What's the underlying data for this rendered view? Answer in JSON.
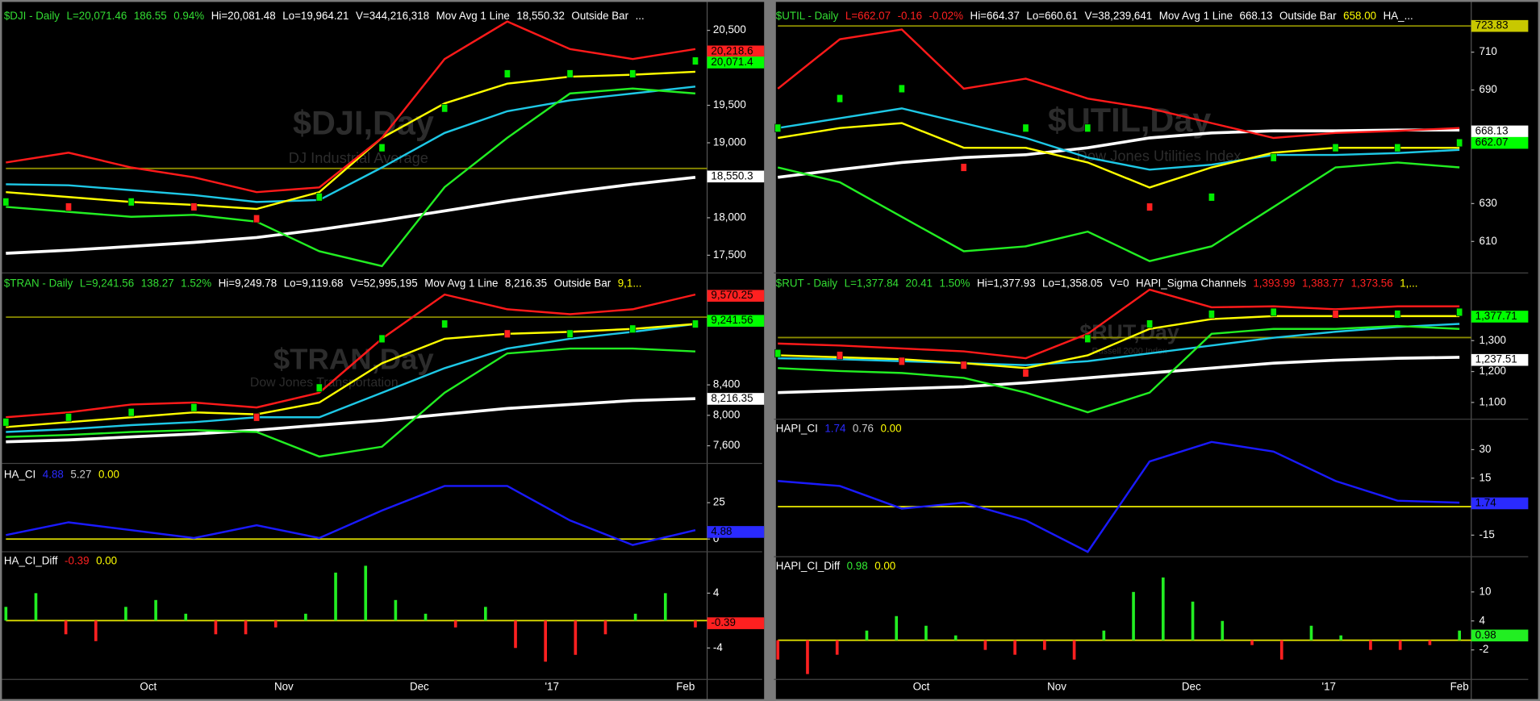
{
  "chart_data": [
    {
      "type": "line",
      "header": [
        {
          "text": "$DJI - Daily",
          "color": "#33dd33"
        },
        {
          "text": "L=20,071.46",
          "color": "#33dd33"
        },
        {
          "text": "186.55",
          "color": "#33dd33"
        },
        {
          "text": "0.94%",
          "color": "#33dd33"
        },
        {
          "text": "Hi=20,081.48",
          "color": "#ffffff"
        },
        {
          "text": "Lo=19,964.21",
          "color": "#ffffff"
        },
        {
          "text": "V=344,216,318",
          "color": "#ffffff"
        },
        {
          "text": "Mov Avg 1 Line",
          "color": "#ffffff"
        },
        {
          "text": "18,550.32",
          "color": "#ffffff"
        },
        {
          "text": "Outside Bar",
          "color": "#ffffff"
        },
        {
          "text": "...",
          "color": "#ffffff"
        }
      ],
      "watermark": [
        "$DJI,Day",
        "DJ Industrial Average"
      ],
      "ylim": [
        17290,
        20800
      ],
      "yticks": [
        {
          "value": 20500,
          "label": "20,500"
        },
        {
          "value": 19500,
          "label": "19,500"
        },
        {
          "value": 19000,
          "label": "19,000"
        },
        {
          "value": 18000,
          "label": "18,000"
        },
        {
          "value": 17500,
          "label": "17,500"
        }
      ],
      "hlines": [
        {
          "value": 18658,
          "color": "#8b8b00"
        }
      ],
      "series": [
        {
          "color": "#ffffff",
          "width": 3,
          "values": [
            17526,
            17566,
            17618,
            17671,
            17737,
            17842,
            17961,
            18092,
            18224,
            18342,
            18447,
            18539
          ]
        },
        {
          "color": "#1ec8e6",
          "width": 2,
          "values": [
            18447,
            18434,
            18368,
            18303,
            18211,
            18237,
            18671,
            19132,
            19421,
            19566,
            19658,
            19750
          ]
        },
        {
          "color": "#ffff00",
          "width": 2,
          "values": [
            18342,
            18276,
            18211,
            18171,
            18118,
            18342,
            19066,
            19526,
            19789,
            19882,
            19908,
            19947
          ]
        },
        {
          "color": "#ff1a1a",
          "width": 2,
          "values": [
            18737,
            18868,
            18671,
            18539,
            18342,
            18405,
            19066,
            20118,
            20618,
            20250,
            20118,
            20250
          ]
        },
        {
          "color": "#22ee22",
          "width": 2,
          "values": [
            18145,
            18079,
            18013,
            18039,
            17947,
            17553,
            17355,
            18408,
            19066,
            19658,
            19724,
            19658
          ]
        },
        {
          "color": "#00ee00",
          "style": "candle",
          "values": [
            18211,
            18145,
            18211,
            18145,
            17987,
            18276,
            18934,
            19461,
            19921,
            19921,
            19921,
            20092
          ]
        }
      ],
      "flags": [
        {
          "value": 20218.6,
          "label": "20,218.6",
          "color": "#ff2020"
        },
        {
          "value": 20071.4,
          "label": "20,071.4",
          "color": "#00ff00"
        },
        {
          "value": 18550.3,
          "label": "18,550.3",
          "color": "#ffffff"
        }
      ]
    },
    {
      "type": "line",
      "header": [
        {
          "text": "$TRAN - Daily",
          "color": "#33dd33"
        },
        {
          "text": "L=9,241.56",
          "color": "#33dd33"
        },
        {
          "text": "138.27",
          "color": "#33dd33"
        },
        {
          "text": "1.52%",
          "color": "#33dd33"
        },
        {
          "text": "Hi=9,249.78",
          "color": "#ffffff"
        },
        {
          "text": "Lo=9,119.68",
          "color": "#ffffff"
        },
        {
          "text": "V=52,995,195",
          "color": "#ffffff"
        },
        {
          "text": "Mov Avg 1 Line",
          "color": "#ffffff"
        },
        {
          "text": "8,216.35",
          "color": "#ffffff"
        },
        {
          "text": "Outside Bar",
          "color": "#ffffff"
        },
        {
          "text": "9,1...",
          "color": "#ffff00"
        }
      ],
      "watermark": [
        "$TRAN,Day",
        "Dow Jones Transportation"
      ],
      "ylim": [
        7394,
        9845
      ],
      "yticks": [
        {
          "value": 8400,
          "label": "8,400"
        },
        {
          "value": 8000,
          "label": "8,000"
        },
        {
          "value": 7600,
          "label": "7,600"
        }
      ],
      "hlines": [
        {
          "value": 9290,
          "color": "#8b8b00"
        }
      ],
      "series": [
        {
          "color": "#ffffff",
          "width": 3,
          "values": [
            7652,
            7677,
            7716,
            7755,
            7806,
            7871,
            7935,
            8013,
            8090,
            8142,
            8194,
            8219
          ]
        },
        {
          "color": "#1ec8e6",
          "width": 2,
          "values": [
            7781,
            7819,
            7871,
            7910,
            7974,
            7974,
            8297,
            8619,
            8877,
            9006,
            9097,
            9200
          ]
        },
        {
          "color": "#ffff00",
          "width": 2,
          "values": [
            7845,
            7910,
            7974,
            8039,
            8013,
            8168,
            8684,
            9006,
            9071,
            9097,
            9135,
            9200
          ]
        },
        {
          "color": "#ff1a1a",
          "width": 2,
          "values": [
            7974,
            8039,
            8142,
            8168,
            8103,
            8297,
            9006,
            9587,
            9394,
            9329,
            9394,
            9587
          ]
        },
        {
          "color": "#22ee22",
          "width": 2,
          "values": [
            7716,
            7742,
            7781,
            7806,
            7781,
            7458,
            7587,
            8297,
            8813,
            8877,
            8877,
            8839
          ]
        },
        {
          "color": "#00ee00",
          "style": "candle",
          "values": [
            7910,
            7974,
            8039,
            8103,
            7974,
            8361,
            9006,
            9200,
            9071,
            9071,
            9135,
            9200
          ]
        }
      ],
      "flags": [
        {
          "value": 9570.25,
          "label": "9,570.25",
          "color": "#ff2020"
        },
        {
          "value": 9241.56,
          "label": "9,241.56",
          "color": "#00ff00"
        },
        {
          "value": 8216.35,
          "label": "8,216.35",
          "color": "#ffffff"
        }
      ]
    },
    {
      "type": "line",
      "header": [
        {
          "text": "HA_CI",
          "color": "#ffffff"
        },
        {
          "text": "4.88",
          "color": "#2a2aff"
        },
        {
          "text": "5.27",
          "color": "#cccccc"
        },
        {
          "text": "0.00",
          "color": "#ffff00"
        }
      ],
      "ylim": [
        -7.4,
        50
      ],
      "yticks": [
        25,
        0
      ],
      "hlines": [
        {
          "value": 0,
          "color": "#dddd00"
        }
      ],
      "series": [
        {
          "color": "#1a1aff",
          "width": 2,
          "values": [
            2.7,
            11.5,
            6.1,
            0.7,
            9.5,
            0.7,
            19.6,
            36.5,
            36.5,
            12.8,
            -4.1,
            6.1
          ]
        }
      ],
      "flags": [
        {
          "value": 4.88,
          "label": "4.88",
          "color": "#2a2aff"
        }
      ]
    },
    {
      "type": "bar",
      "header": [
        {
          "text": "HA_CI_Diff",
          "color": "#ffffff"
        },
        {
          "text": "-0.39",
          "color": "#ff2020"
        },
        {
          "text": "0.00",
          "color": "#ffff00"
        }
      ],
      "ylim": [
        -8.3,
        9.9
      ],
      "yticks": [
        4,
        -4
      ],
      "hlines": [
        {
          "value": 0,
          "color": "#dddd00"
        }
      ],
      "values": [
        2,
        4,
        -2,
        -3,
        2,
        3,
        1,
        -2,
        -2,
        -1,
        1,
        7,
        8,
        3,
        1,
        -1,
        2,
        -4,
        -6,
        -5,
        -2,
        1,
        4,
        -1
      ],
      "up_color": "#22ee22",
      "down_color": "#ff2020",
      "flags": [
        {
          "value": -0.39,
          "label": "-0.39",
          "color": "#ff2020"
        }
      ],
      "x_labels": [
        "Oct",
        "Nov",
        "Dec",
        "'17",
        "Feb"
      ]
    },
    {
      "type": "line",
      "header": [
        {
          "text": "$UTIL - Daily",
          "color": "#33dd33"
        },
        {
          "text": "L=662.07",
          "color": "#ff2020"
        },
        {
          "text": "-0.16",
          "color": "#ff2020"
        },
        {
          "text": "-0.02%",
          "color": "#ff2020"
        },
        {
          "text": "Hi=664.37",
          "color": "#ffffff"
        },
        {
          "text": "Lo=660.61",
          "color": "#ffffff"
        },
        {
          "text": "V=38,239,641",
          "color": "#ffffff"
        },
        {
          "text": "Mov Avg 1 Line",
          "color": "#ffffff"
        },
        {
          "text": "668.13",
          "color": "#ffffff"
        },
        {
          "text": "Outside Bar",
          "color": "#ffffff"
        },
        {
          "text": "658.00",
          "color": "#ffff00"
        },
        {
          "text": "HA_...",
          "color": "#ffffff"
        }
      ],
      "watermark": [
        "$UTIL,Day",
        "Dow Jones Utilities Index"
      ],
      "ylim": [
        594.4,
        733.4
      ],
      "yticks": [
        710,
        690,
        630,
        610
      ],
      "hlines": [
        {
          "value": 723.83,
          "color": "#8b8b00"
        }
      ],
      "series": [
        {
          "color": "#ffffff",
          "width": 3,
          "values": [
            643.9,
            648.0,
            651.7,
            654.3,
            655.8,
            659.5,
            664.7,
            667.3,
            668.4,
            668.4,
            668.9,
            668.9
          ]
        },
        {
          "color": "#1ec8e6",
          "width": 2,
          "values": [
            669.9,
            675.1,
            680.3,
            672.5,
            664.7,
            654.3,
            647.9,
            650.5,
            655.7,
            655.7,
            656.7,
            658.4
          ]
        },
        {
          "color": "#ffff00",
          "width": 2,
          "values": [
            664.7,
            669.9,
            672.5,
            659.5,
            659.5,
            651.7,
            638.5,
            649.1,
            656.9,
            659.5,
            659.5,
            659.5
          ]
        },
        {
          "color": "#ff1a1a",
          "width": 2,
          "values": [
            690.7,
            716.8,
            722.0,
            690.7,
            696.0,
            685.5,
            680.3,
            672.5,
            664.7,
            667.3,
            668.4,
            669.9
          ]
        },
        {
          "color": "#22ee22",
          "width": 2,
          "values": [
            649.1,
            641.3,
            623.0,
            604.8,
            607.4,
            615.2,
            599.6,
            607.4,
            628.2,
            649.1,
            651.7,
            649.1
          ]
        },
        {
          "color": "#00ee00",
          "style": "candle",
          "values": [
            669.9,
            685.5,
            690.7,
            649.1,
            669.9,
            669.9,
            628.2,
            633.4,
            654.3,
            659.5,
            659.5,
            662.1
          ]
        }
      ],
      "flags": [
        {
          "value": 723.83,
          "label": "723.83",
          "color": "#c8c800"
        },
        {
          "value": 668.13,
          "label": "668.13",
          "color": "#ffffff"
        },
        {
          "value": 662.07,
          "label": "662.07",
          "color": "#00ff00"
        }
      ]
    },
    {
      "type": "line",
      "header": [
        {
          "text": "$RUT - Daily",
          "color": "#33dd33"
        },
        {
          "text": "L=1,377.84",
          "color": "#33dd33"
        },
        {
          "text": "20.41",
          "color": "#33dd33"
        },
        {
          "text": "1.50%",
          "color": "#33dd33"
        },
        {
          "text": "Hi=1,377.93",
          "color": "#ffffff"
        },
        {
          "text": "Lo=1,358.05",
          "color": "#ffffff"
        },
        {
          "text": "V=0",
          "color": "#ffffff"
        },
        {
          "text": "HAPI_Sigma Channels",
          "color": "#ffffff"
        },
        {
          "text": "1,393.99",
          "color": "#ff2020"
        },
        {
          "text": "1,383.77",
          "color": "#ff2020"
        },
        {
          "text": "1,373.56",
          "color": "#ff2020"
        },
        {
          "text": "1,...",
          "color": "#ffff00"
        }
      ],
      "watermark": [
        "$RUT,Day",
        "Russell 2000 Index"
      ],
      "ylim": [
        1052,
        1512.7
      ],
      "yticks": [
        {
          "value": 1300,
          "label": "1,300"
        },
        {
          "value": 1200,
          "label": "1,200"
        },
        {
          "value": 1100,
          "label": "1,100"
        }
      ],
      "hlines": [
        {
          "value": 1310,
          "color": "#8b8b00"
        }
      ],
      "series": [
        {
          "color": "#ffffff",
          "width": 3,
          "values": [
            1131.7,
            1138.1,
            1144.4,
            1150.8,
            1163.5,
            1179.4,
            1195.2,
            1211.1,
            1227.0,
            1236.5,
            1242.9,
            1246.0
          ]
        },
        {
          "color": "#1ec8e6",
          "width": 2,
          "values": [
            1242.9,
            1239.7,
            1233.3,
            1227.0,
            1220.6,
            1233.3,
            1258.7,
            1284.1,
            1309.5,
            1328.6,
            1344.4,
            1354.0
          ]
        },
        {
          "color": "#ffff00",
          "width": 2,
          "values": [
            1252.4,
            1246.0,
            1239.7,
            1227.0,
            1211.1,
            1252.4,
            1338.1,
            1369.8,
            1379.4,
            1379.4,
            1379.4,
            1379.4
          ]
        },
        {
          "color": "#ff1a1a",
          "width": 2,
          "values": [
            1290.5,
            1284.1,
            1274.6,
            1265.1,
            1242.9,
            1322.2,
            1465.1,
            1407.9,
            1411.1,
            1401.6,
            1411.1,
            1411.1
          ]
        },
        {
          "color": "#22ee22",
          "width": 2,
          "values": [
            1211.1,
            1201.6,
            1195.2,
            1179.4,
            1131.7,
            1068.3,
            1131.7,
            1322.2,
            1338.1,
            1338.1,
            1347.6,
            1338.1
          ]
        },
        {
          "color": "#00ee00",
          "style": "candle",
          "values": [
            1258.7,
            1252.4,
            1233.3,
            1220.6,
            1195.2,
            1306.3,
            1354.0,
            1385.7,
            1392.1,
            1385.7,
            1385.7,
            1392.1
          ]
        }
      ],
      "flags": [
        {
          "value": 1377.71,
          "label": "1,377.71",
          "color": "#00ff00"
        },
        {
          "value": 1237.51,
          "label": "1,237.51",
          "color": "#ffffff"
        }
      ]
    },
    {
      "type": "line",
      "header": [
        {
          "text": "HAPI_CI",
          "color": "#ffffff"
        },
        {
          "text": "1.74",
          "color": "#2a2aff"
        },
        {
          "text": "0.76",
          "color": "#cccccc"
        },
        {
          "text": "0.00",
          "color": "#ffff00"
        }
      ],
      "ylim": [
        -25.3,
        45.5
      ],
      "yticks": [
        30,
        15,
        -15
      ],
      "hlines": [
        {
          "value": 0,
          "color": "#dddd00"
        }
      ],
      "series": [
        {
          "color": "#1a1aff",
          "width": 2,
          "values": [
            13.5,
            10.9,
            -1.0,
            2.1,
            -7.2,
            -23.8,
            23.8,
            34.1,
            29.0,
            13.5,
            3.1,
            2.1
          ]
        }
      ],
      "flags": [
        {
          "value": 1.74,
          "label": "1.74",
          "color": "#2a2aff"
        }
      ]
    },
    {
      "type": "bar",
      "header": [
        {
          "text": "HAPI_CI_Diff",
          "color": "#ffffff"
        },
        {
          "text": "0.98",
          "color": "#33ee33"
        },
        {
          "text": "0.00",
          "color": "#ffff00"
        }
      ],
      "ylim": [
        -7.7,
        17.1
      ],
      "yticks": [
        10,
        4,
        -2
      ],
      "hlines": [
        {
          "value": 0,
          "color": "#dddd00"
        }
      ],
      "values": [
        -4,
        -7,
        -3,
        2,
        5,
        3,
        1,
        -2,
        -3,
        -2,
        -4,
        2,
        10,
        13,
        8,
        4,
        -1,
        -4,
        3,
        1,
        -2,
        -2,
        -1,
        2
      ],
      "up_color": "#22ee22",
      "down_color": "#ff2020",
      "flags": [
        {
          "value": 0.98,
          "label": "0.98",
          "color": "#22ee22"
        }
      ],
      "x_labels": [
        "Oct",
        "Nov",
        "Dec",
        "'17",
        "Feb"
      ]
    }
  ]
}
